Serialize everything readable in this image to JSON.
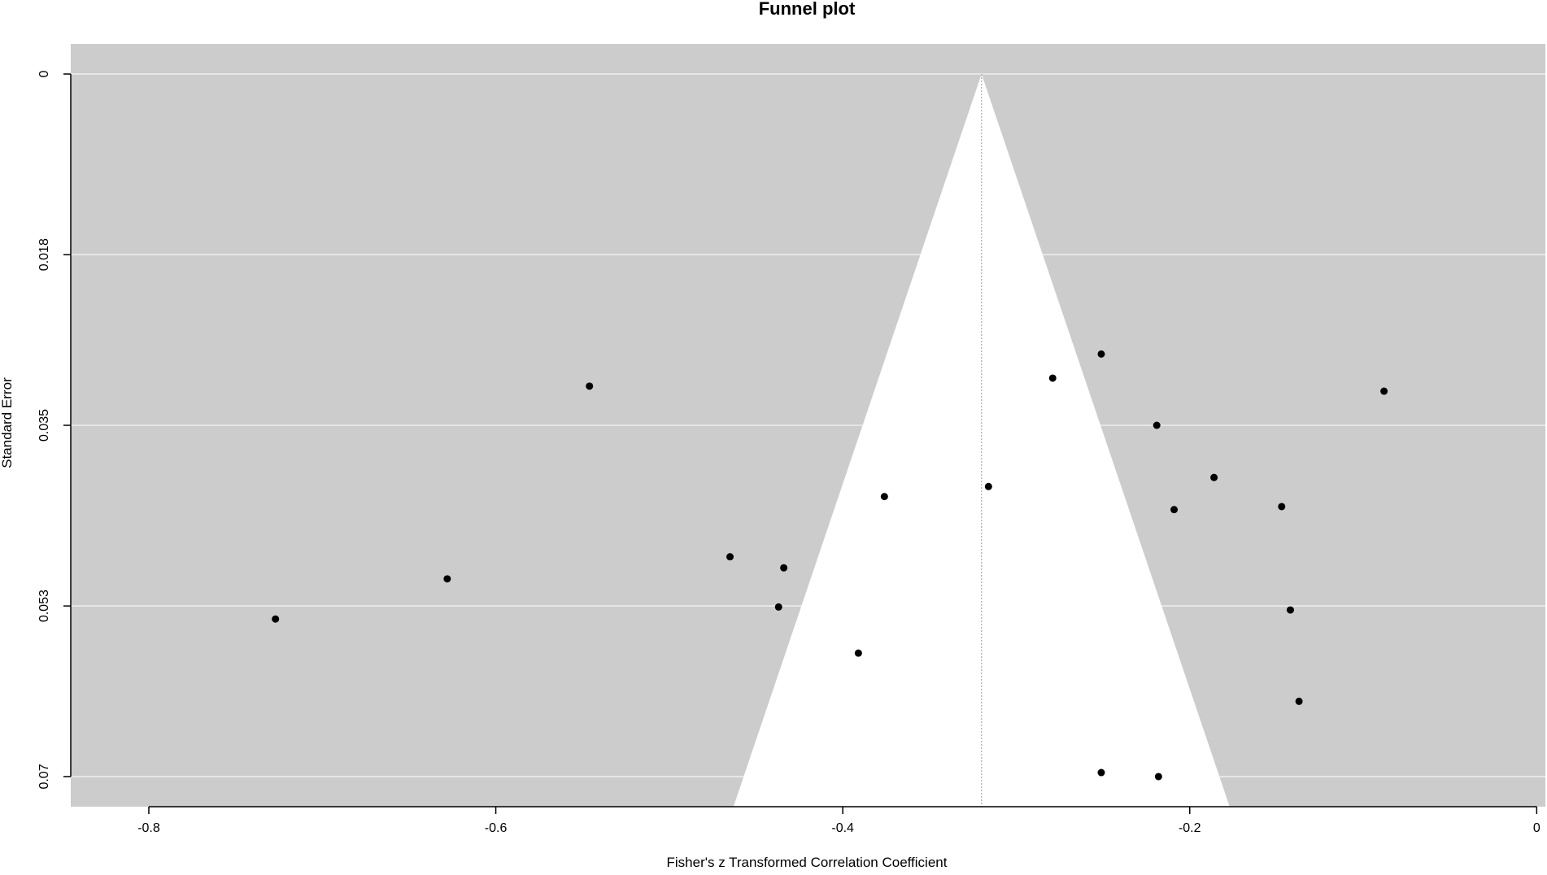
{
  "chart_data": {
    "type": "scatter",
    "title": "Funnel plot",
    "xlabel": "Fisher's z Transformed Correlation Coefficient",
    "ylabel": "Standard Error",
    "xlim": [
      -0.845,
      0.005
    ],
    "ylim": [
      0.073,
      -0.003
    ],
    "y_reversed": true,
    "x_ticks": [
      -0.8,
      -0.6,
      -0.4,
      -0.2,
      0
    ],
    "x_tick_labels": [
      "-0.8",
      "-0.6",
      "-0.4",
      "-0.2",
      "0"
    ],
    "y_ticks": [
      0,
      0.018,
      0.035,
      0.053,
      0.07
    ],
    "y_tick_labels": [
      "0",
      "0.018",
      "0.035",
      "0.053",
      "0.07"
    ],
    "grid": "horizontal",
    "colors": {
      "panel_background": "#cccccc",
      "funnel_fill": "#ffffff",
      "grid_line": "#eeeeee",
      "point": "#000000",
      "reference_line": "#999999"
    },
    "funnel": {
      "center": -0.32,
      "apex_se": 0,
      "half_width_at_se_0.073": 0.143
    },
    "points": [
      {
        "x": -0.727,
        "y": 0.0543
      },
      {
        "x": -0.628,
        "y": 0.0503
      },
      {
        "x": -0.546,
        "y": 0.0311
      },
      {
        "x": -0.465,
        "y": 0.0481
      },
      {
        "x": -0.434,
        "y": 0.0492
      },
      {
        "x": -0.437,
        "y": 0.0531
      },
      {
        "x": -0.391,
        "y": 0.0577
      },
      {
        "x": -0.376,
        "y": 0.0421
      },
      {
        "x": -0.316,
        "y": 0.0411
      },
      {
        "x": -0.279,
        "y": 0.0303
      },
      {
        "x": -0.251,
        "y": 0.0279
      },
      {
        "x": -0.219,
        "y": 0.035
      },
      {
        "x": -0.209,
        "y": 0.0434
      },
      {
        "x": -0.186,
        "y": 0.0402
      },
      {
        "x": -0.147,
        "y": 0.0431
      },
      {
        "x": -0.142,
        "y": 0.0534
      },
      {
        "x": -0.137,
        "y": 0.0625
      },
      {
        "x": -0.088,
        "y": 0.0316
      },
      {
        "x": -0.251,
        "y": 0.0696
      },
      {
        "x": -0.218,
        "y": 0.07
      }
    ]
  }
}
